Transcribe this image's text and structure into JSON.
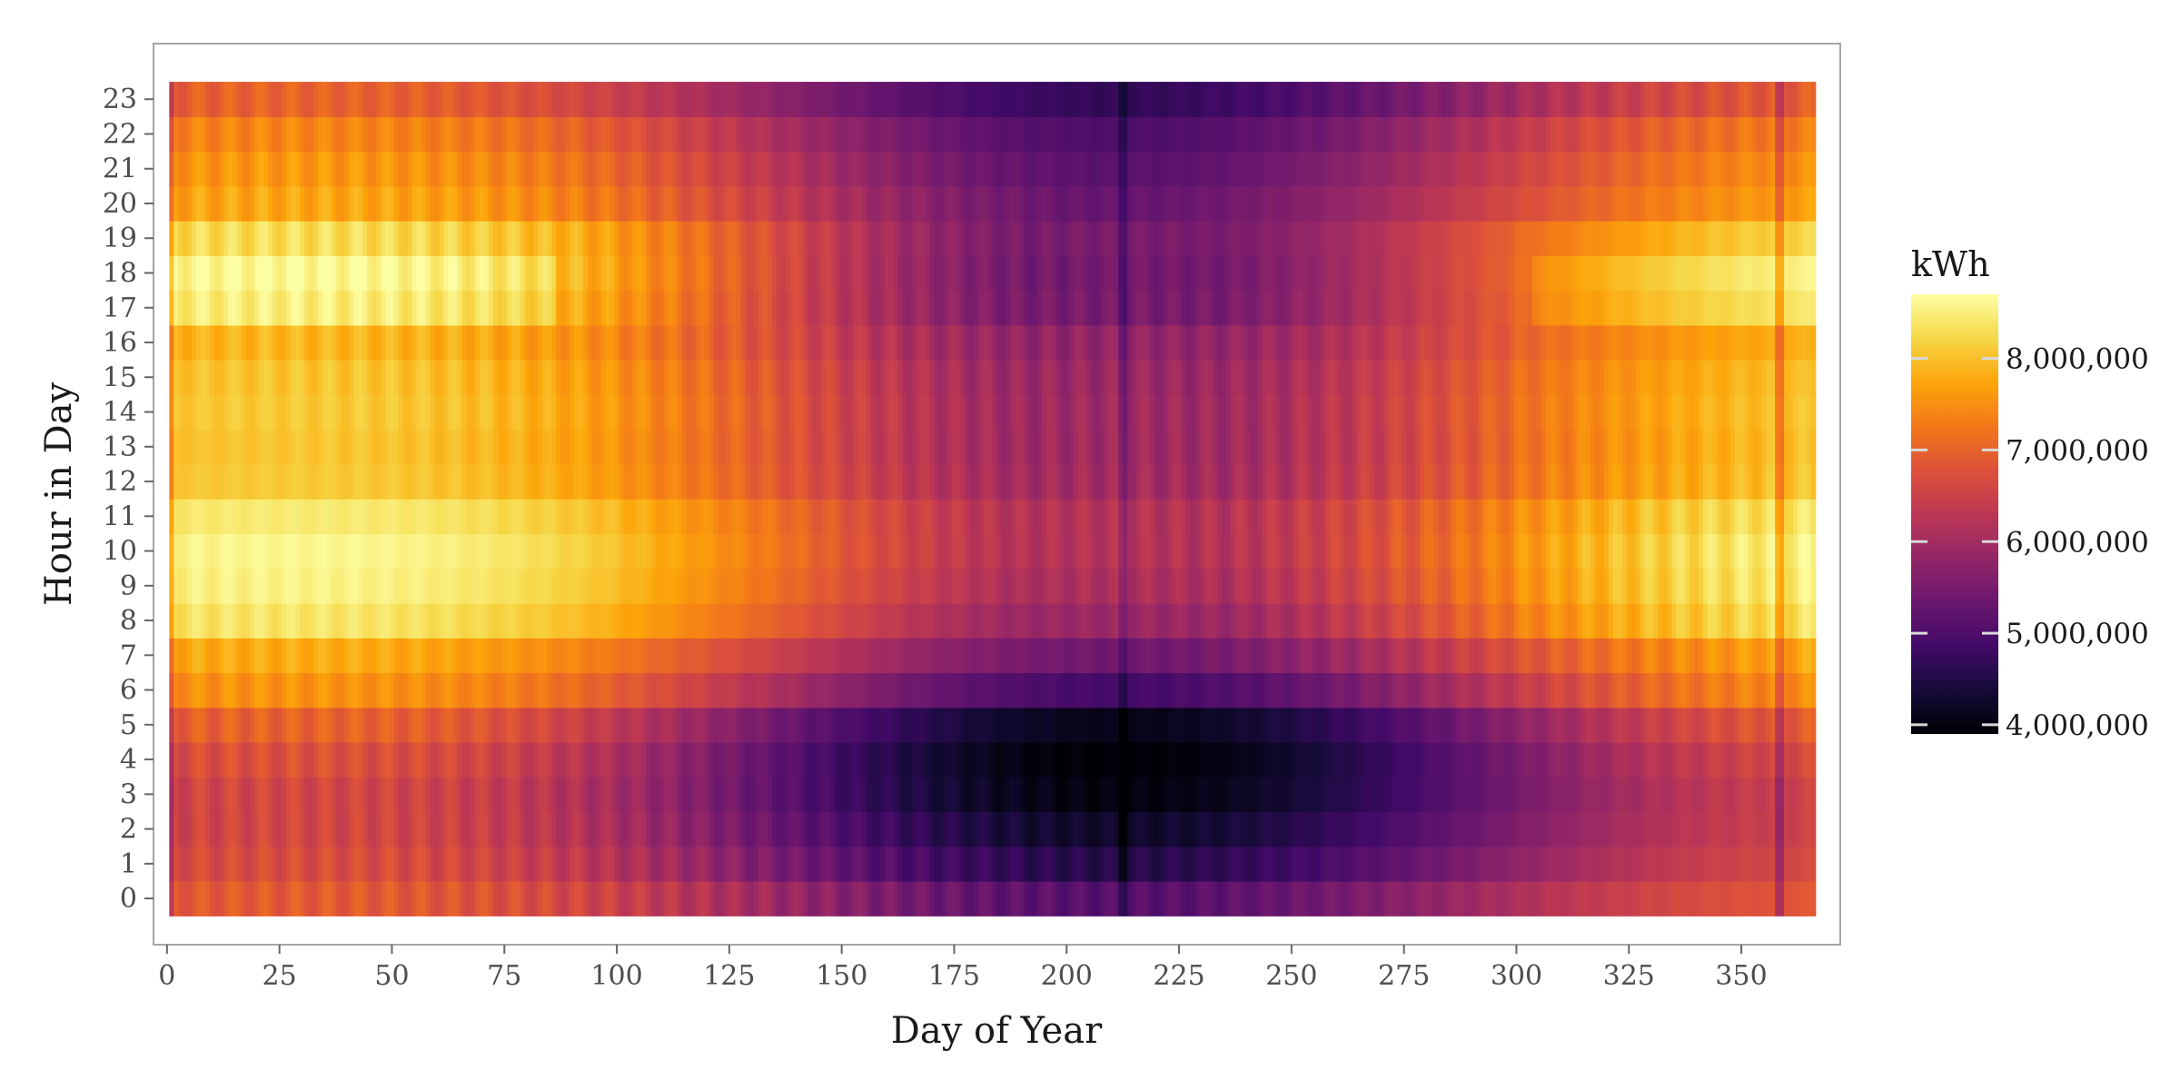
{
  "chart_data": {
    "type": "heatmap",
    "title": "",
    "xlabel": "Day of Year",
    "ylabel": "Hour in Day",
    "xlim": [
      -3,
      372
    ],
    "ylim": [
      -1.33,
      24.6
    ],
    "x_range": [
      1,
      366
    ],
    "y_range": [
      0,
      23
    ],
    "x_ticks": [
      "0",
      "25",
      "50",
      "75",
      "100",
      "125",
      "150",
      "175",
      "200",
      "225",
      "250",
      "275",
      "300",
      "325",
      "350"
    ],
    "y_ticks": [
      "0",
      "1",
      "2",
      "3",
      "4",
      "5",
      "6",
      "7",
      "8",
      "9",
      "10",
      "11",
      "12",
      "13",
      "14",
      "15",
      "16",
      "17",
      "18",
      "19",
      "20",
      "21",
      "22",
      "23"
    ],
    "colorscale": "inferno",
    "legend": {
      "title": "kWh",
      "position": "right",
      "min": 3900000,
      "max": 8700000,
      "ticks": [
        "4,000,000",
        "5,000,000",
        "6,000,000",
        "7,000,000",
        "8,000,000"
      ]
    },
    "hour_profile_kwh": {
      "winter_peak": [
        6900000,
        6700000,
        6600000,
        6600000,
        6750000,
        7000000,
        7550000,
        7800000,
        8400000,
        8550000,
        8600000,
        8450000,
        8100000,
        8050000,
        8100000,
        8050000,
        7900000,
        8500000,
        8650000,
        8300000,
        7750000,
        7600000,
        7400000,
        7000000
      ],
      "summer_trough": [
        5100000,
        4550000,
        4250000,
        4000000,
        3900000,
        4100000,
        4900000,
        5400000,
        5900000,
        6100000,
        6200000,
        6200000,
        6000000,
        5950000,
        5950000,
        5900000,
        5800000,
        5750000,
        5700000,
        5500000,
        5300000,
        5150000,
        5000000,
        4700000
      ]
    },
    "day_minimum": 212,
    "holiday_dips": [
      1,
      358,
      359
    ]
  }
}
